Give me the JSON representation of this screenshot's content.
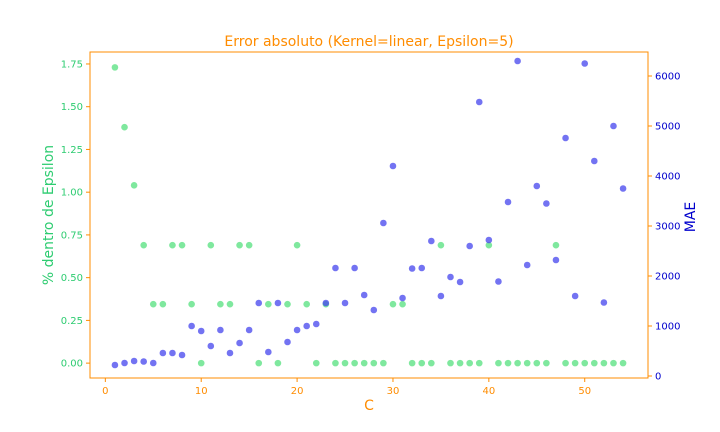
{
  "colors": {
    "frame": "#ff8c00",
    "left_axis": "#2ecc71",
    "right_axis": "#0000cd",
    "green_points": "#54e07e",
    "blue_points": "#4444ee"
  },
  "chart_data": {
    "type": "scatter",
    "title": "Error absoluto (Kernel=linear, Epsilon=5)",
    "xlabel": "C",
    "ylabel_left": "% dentro de Epsilon",
    "ylabel_right": "MAE",
    "xlim": [
      -1.6,
      56.6
    ],
    "ylim_left": [
      -0.087,
      1.82
    ],
    "ylim_right": [
      -40,
      6480
    ],
    "x_ticks": [
      0,
      10,
      20,
      30,
      40,
      50
    ],
    "y_ticks_left": [
      "0.00",
      "0.25",
      "0.50",
      "0.75",
      "1.00",
      "1.25",
      "1.50",
      "1.75"
    ],
    "y_ticks_right": [
      0,
      1000,
      2000,
      3000,
      4000,
      5000,
      6000
    ],
    "grid": false,
    "series": [
      {
        "axis": "left",
        "x": [
          1,
          2,
          3,
          4,
          5,
          6,
          7,
          8,
          9,
          10,
          11,
          12,
          13,
          14,
          15,
          16,
          17,
          18,
          19,
          20,
          21,
          22,
          23,
          24,
          25,
          26,
          27,
          28,
          29,
          30,
          31,
          32,
          33,
          34,
          35,
          36,
          37,
          38,
          39,
          40,
          41,
          42,
          43,
          44,
          45,
          46,
          47,
          48,
          49,
          50,
          51,
          52,
          53,
          54
        ],
        "y": [
          1.73,
          1.38,
          1.04,
          0.69,
          0.345,
          0.345,
          0.69,
          0.69,
          0.345,
          0,
          0.69,
          0.345,
          0.345,
          0.69,
          0.69,
          0,
          0.345,
          0,
          0.345,
          0.69,
          0.345,
          0,
          0.345,
          0,
          0,
          0,
          0,
          0,
          0,
          0.345,
          0.345,
          0,
          0,
          0,
          0.69,
          0,
          0,
          0,
          0,
          0.69,
          0,
          0,
          0,
          0,
          0,
          0,
          0.69,
          0,
          0,
          0,
          0,
          0,
          0,
          0
        ]
      },
      {
        "axis": "right",
        "x": [
          1,
          2,
          3,
          4,
          5,
          6,
          7,
          8,
          9,
          10,
          11,
          12,
          13,
          14,
          15,
          16,
          17,
          18,
          19,
          20,
          21,
          22,
          23,
          24,
          25,
          26,
          27,
          28,
          29,
          30,
          31,
          32,
          33,
          34,
          35,
          36,
          37,
          38,
          39,
          40,
          41,
          42,
          43,
          44,
          45,
          46,
          47,
          48,
          49,
          50,
          51,
          52,
          53,
          54
        ],
        "y": [
          220,
          260,
          300,
          290,
          260,
          460,
          460,
          420,
          1000,
          900,
          600,
          920,
          460,
          660,
          920,
          1460,
          480,
          1460,
          680,
          920,
          1000,
          1040,
          1460,
          2160,
          1460,
          2160,
          1620,
          1320,
          3060,
          4200,
          1560,
          2150,
          2160,
          2700,
          1600,
          1980,
          1880,
          2600,
          5480,
          2720,
          1890,
          3480,
          6300,
          2220,
          3800,
          3450,
          2320,
          4760,
          1600,
          6250,
          4300,
          1470,
          5000,
          3750
        ]
      }
    ]
  }
}
